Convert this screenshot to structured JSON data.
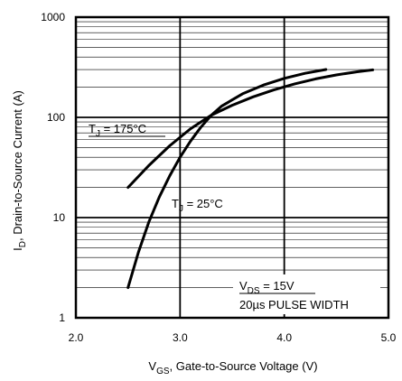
{
  "chart_data": {
    "type": "line",
    "xlabel_main": "V",
    "xlabel_sub": "GS",
    "xlabel_rest": ", Gate-to-Source Voltage (V)",
    "ylabel_main": "I",
    "ylabel_sub": "D",
    "ylabel_rest": ", Drain-to-Source Current  (A)",
    "xlim": [
      2.0,
      5.0
    ],
    "ylim": [
      1,
      1000
    ],
    "yscale": "log",
    "grid": true,
    "x_ticks": [
      {
        "value": 2.0,
        "label": "2.0"
      },
      {
        "value": 3.0,
        "label": "3.0"
      },
      {
        "value": 4.0,
        "label": "4.0"
      },
      {
        "value": 5.0,
        "label": "5.0"
      }
    ],
    "y_ticks": [
      {
        "value": 1,
        "label": "1"
      },
      {
        "value": 10,
        "label": "10"
      },
      {
        "value": 100,
        "label": "100"
      },
      {
        "value": 1000,
        "label": "1000"
      }
    ],
    "series": [
      {
        "label_main": "T",
        "label_sub": "J",
        "label_rest": " = 175°C",
        "x": [
          2.5,
          2.7,
          2.9,
          3.1,
          3.3,
          3.5,
          3.7,
          3.9,
          4.1,
          4.3,
          4.5,
          4.7,
          4.85
        ],
        "y": [
          20,
          33,
          52,
          77,
          105,
          132,
          160,
          188,
          216,
          242,
          265,
          285,
          298
        ]
      },
      {
        "label_main": "T",
        "label_sub": "J",
        "label_rest": " = 25°C",
        "x": [
          2.5,
          2.6,
          2.7,
          2.8,
          2.9,
          3.0,
          3.1,
          3.2,
          3.3,
          3.4,
          3.6,
          3.8,
          4.0,
          4.2,
          4.4
        ],
        "y": [
          2,
          4.5,
          9,
          16,
          26,
          40,
          58,
          80,
          105,
          130,
          172,
          210,
          245,
          275,
          300
        ]
      }
    ],
    "annotation": {
      "line1_main": "V",
      "line1_sub": "DS",
      "line1_rest": " = 15V",
      "line2": "20µs PULSE WIDTH"
    }
  }
}
